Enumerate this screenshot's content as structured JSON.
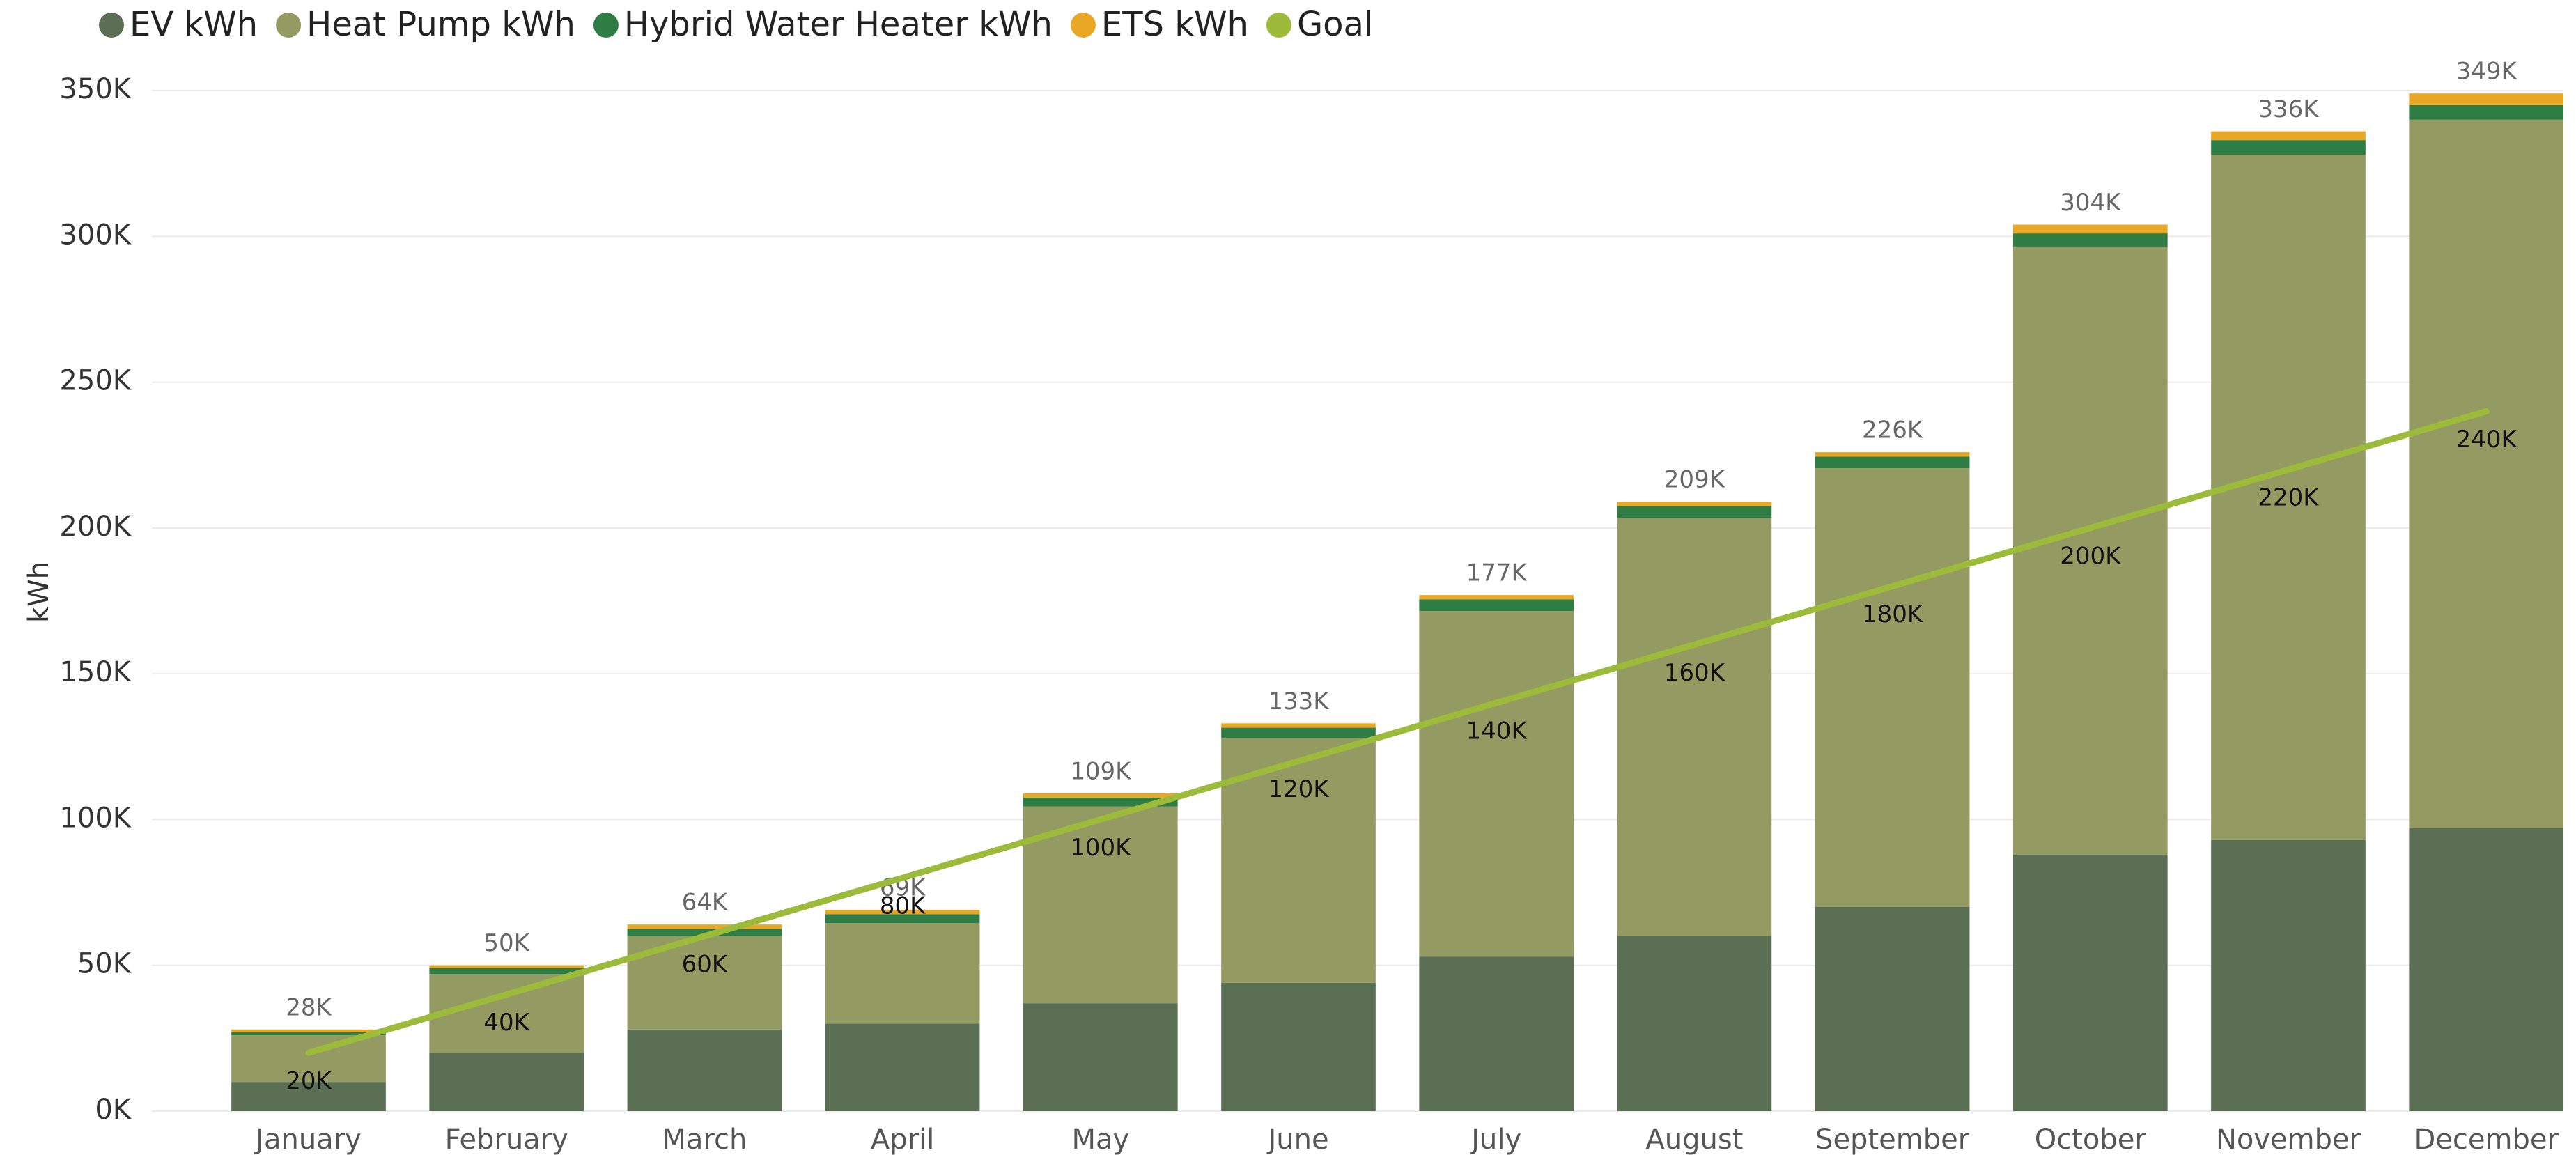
{
  "chart_data": {
    "type": "stacked_bar_line",
    "y_label": "kWh",
    "categories": [
      "January",
      "February",
      "March",
      "April",
      "May",
      "June",
      "July",
      "August",
      "September",
      "October",
      "November",
      "December"
    ],
    "series": [
      {
        "name": "EV kWh",
        "color": "#5b6f55",
        "values": [
          10000,
          20000,
          28000,
          30000,
          37000,
          44000,
          53000,
          60000,
          70000,
          88000,
          93000,
          97000
        ]
      },
      {
        "name": "Heat Pump kWh",
        "color": "#939b62",
        "values": [
          16000,
          27000,
          32000,
          34500,
          67500,
          84000,
          118500,
          143500,
          150500,
          208500,
          235000,
          243000
        ]
      },
      {
        "name": "Hybrid Water Heater kWh",
        "color": "#2e7d44",
        "values": [
          1000,
          2000,
          2500,
          3000,
          3000,
          3500,
          4000,
          4000,
          4000,
          4500,
          5000,
          5000
        ]
      },
      {
        "name": "ETS kWh",
        "color": "#e8a826",
        "values": [
          1000,
          1000,
          1500,
          1500,
          1500,
          1500,
          1500,
          1500,
          1500,
          3000,
          3000,
          4000
        ]
      },
      {
        "name": "Goal",
        "color": "#9dbb3a",
        "type": "line",
        "values": [
          20000,
          40000,
          60000,
          80000,
          100000,
          120000,
          140000,
          160000,
          180000,
          200000,
          220000,
          240000
        ],
        "value_labels": [
          "20K",
          "40K",
          "60K",
          "80K",
          "100K",
          "120K",
          "140K",
          "160K",
          "180K",
          "200K",
          "220K",
          "240K"
        ]
      }
    ],
    "totals": {
      "values": [
        28000,
        50000,
        64000,
        69000,
        109000,
        133000,
        177000,
        209000,
        226000,
        304000,
        336000,
        349000
      ],
      "value_labels": [
        "28K",
        "50K",
        "64K",
        "69K",
        "109K",
        "133K",
        "177K",
        "209K",
        "226K",
        "304K",
        "336K",
        "349K"
      ]
    },
    "ylim": [
      0,
      350000
    ],
    "yticks": [
      {
        "value": 0,
        "label": "0K"
      },
      {
        "value": 50000,
        "label": "50K"
      },
      {
        "value": 100000,
        "label": "100K"
      },
      {
        "value": 150000,
        "label": "150K"
      },
      {
        "value": 200000,
        "label": "200K"
      },
      {
        "value": 250000,
        "label": "250K"
      },
      {
        "value": 300000,
        "label": "300K"
      },
      {
        "value": 350000,
        "label": "350K"
      }
    ],
    "grid": true,
    "legend": "top-left"
  }
}
